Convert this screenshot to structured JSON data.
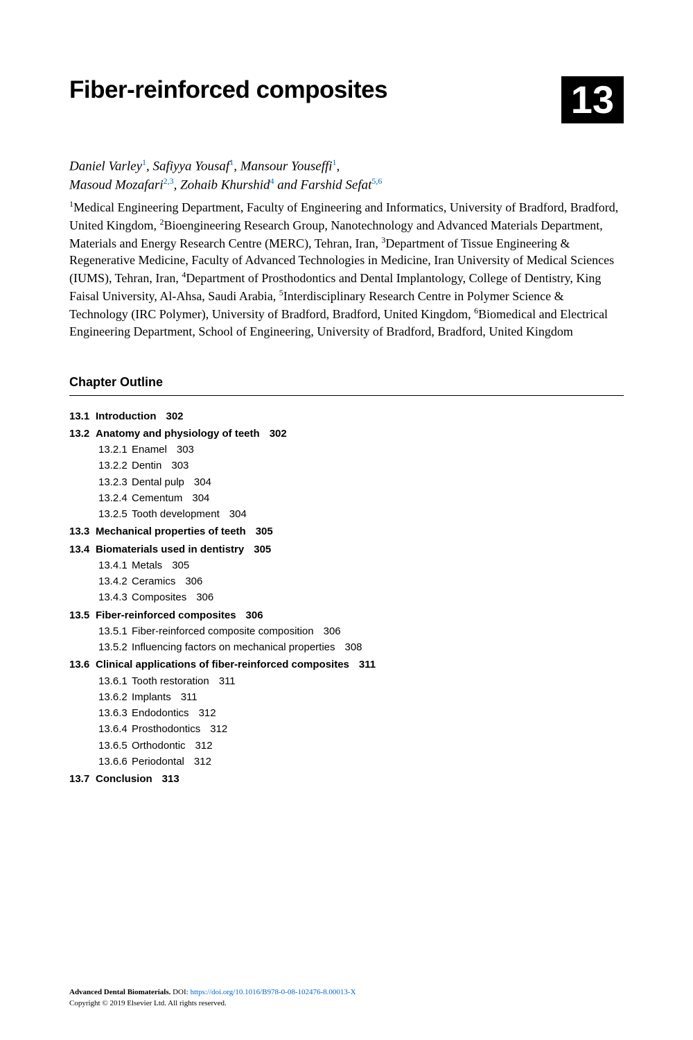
{
  "chapter": {
    "title": "Fiber-reinforced composites",
    "number": "13"
  },
  "authors_line1": "Daniel Varley",
  "authors_line1_sup1": "1",
  "authors_line1_b": ", Safiyya Yousaf",
  "authors_line1_sup2": "1",
  "authors_line1_c": ", Mansour Youseffi",
  "authors_line1_sup3": "1",
  "authors_line1_d": ",",
  "authors_line2_a": "Masoud Mozafari",
  "authors_line2_sup1": "2,3",
  "authors_line2_b": ", Zohaib Khurshid",
  "authors_line2_sup2": "4",
  "authors_line2_c": " and Farshid Sefat",
  "authors_line2_sup3": "5,6",
  "affiliations": "Medical Engineering Department, Faculty of Engineering and Informatics, University of Bradford, Bradford, United Kingdom, ",
  "aff_sup2": "2",
  "aff2": "Bioengineering Research Group, Nanotechnology and Advanced Materials Department, Materials and Energy Research Centre (MERC), Tehran, Iran, ",
  "aff_sup3": "3",
  "aff3": "Department of Tissue Engineering & Regenerative Medicine, Faculty of Advanced Technologies in Medicine, Iran University of Medical Sciences (IUMS), Tehran, Iran, ",
  "aff_sup4": "4",
  "aff4": "Department of Prosthodontics and Dental Implantology, College of Dentistry, King Faisal University, Al-Ahsa, Saudi Arabia, ",
  "aff_sup5": "5",
  "aff5": "Interdisciplinary Research Centre in Polymer Science & Technology (IRC Polymer), University of Bradford, Bradford, United Kingdom, ",
  "aff_sup6": "6",
  "aff6": "Biomedical and Electrical Engineering Department, School of Engineering, University of Bradford, Bradford, United Kingdom",
  "aff_sup1": "1",
  "outline_heading": "Chapter Outline",
  "toc": [
    {
      "level": 1,
      "num": "13.1",
      "title": "Introduction",
      "page": "302"
    },
    {
      "level": 1,
      "num": "13.2",
      "title": "Anatomy and physiology of teeth",
      "page": "302"
    },
    {
      "level": 2,
      "num": "13.2.1",
      "title": "Enamel",
      "page": "303"
    },
    {
      "level": 2,
      "num": "13.2.2",
      "title": "Dentin",
      "page": "303"
    },
    {
      "level": 2,
      "num": "13.2.3",
      "title": "Dental pulp",
      "page": "304"
    },
    {
      "level": 2,
      "num": "13.2.4",
      "title": "Cementum",
      "page": "304"
    },
    {
      "level": 2,
      "num": "13.2.5",
      "title": "Tooth development",
      "page": "304"
    },
    {
      "level": 1,
      "num": "13.3",
      "title": "Mechanical properties of teeth",
      "page": "305"
    },
    {
      "level": 1,
      "num": "13.4",
      "title": "Biomaterials used in dentistry",
      "page": "305"
    },
    {
      "level": 2,
      "num": "13.4.1",
      "title": "Metals",
      "page": "305"
    },
    {
      "level": 2,
      "num": "13.4.2",
      "title": "Ceramics",
      "page": "306"
    },
    {
      "level": 2,
      "num": "13.4.3",
      "title": "Composites",
      "page": "306"
    },
    {
      "level": 1,
      "num": "13.5",
      "title": "Fiber-reinforced composites",
      "page": "306"
    },
    {
      "level": 2,
      "num": "13.5.1",
      "title": "Fiber-reinforced composite composition",
      "page": "306"
    },
    {
      "level": 2,
      "num": "13.5.2",
      "title": "Influencing factors on mechanical properties",
      "page": "308"
    },
    {
      "level": 1,
      "num": "13.6",
      "title": "Clinical applications of fiber-reinforced composites",
      "page": "311"
    },
    {
      "level": 2,
      "num": "13.6.1",
      "title": "Tooth restoration",
      "page": "311"
    },
    {
      "level": 2,
      "num": "13.6.2",
      "title": "Implants",
      "page": "311"
    },
    {
      "level": 2,
      "num": "13.6.3",
      "title": "Endodontics",
      "page": "312"
    },
    {
      "level": 2,
      "num": "13.6.4",
      "title": "Prosthodontics",
      "page": "312"
    },
    {
      "level": 2,
      "num": "13.6.5",
      "title": "Orthodontic",
      "page": "312"
    },
    {
      "level": 2,
      "num": "13.6.6",
      "title": "Periodontal",
      "page": "312"
    },
    {
      "level": 1,
      "num": "13.7",
      "title": "Conclusion",
      "page": "313"
    }
  ],
  "footer": {
    "book": "Advanced Dental Biomaterials.",
    "doi_label": " DOI: ",
    "doi": "https://doi.org/10.1016/B978-0-08-102476-8.00013-X",
    "copyright": "Copyright © 2019 Elsevier Ltd. All rights reserved."
  }
}
